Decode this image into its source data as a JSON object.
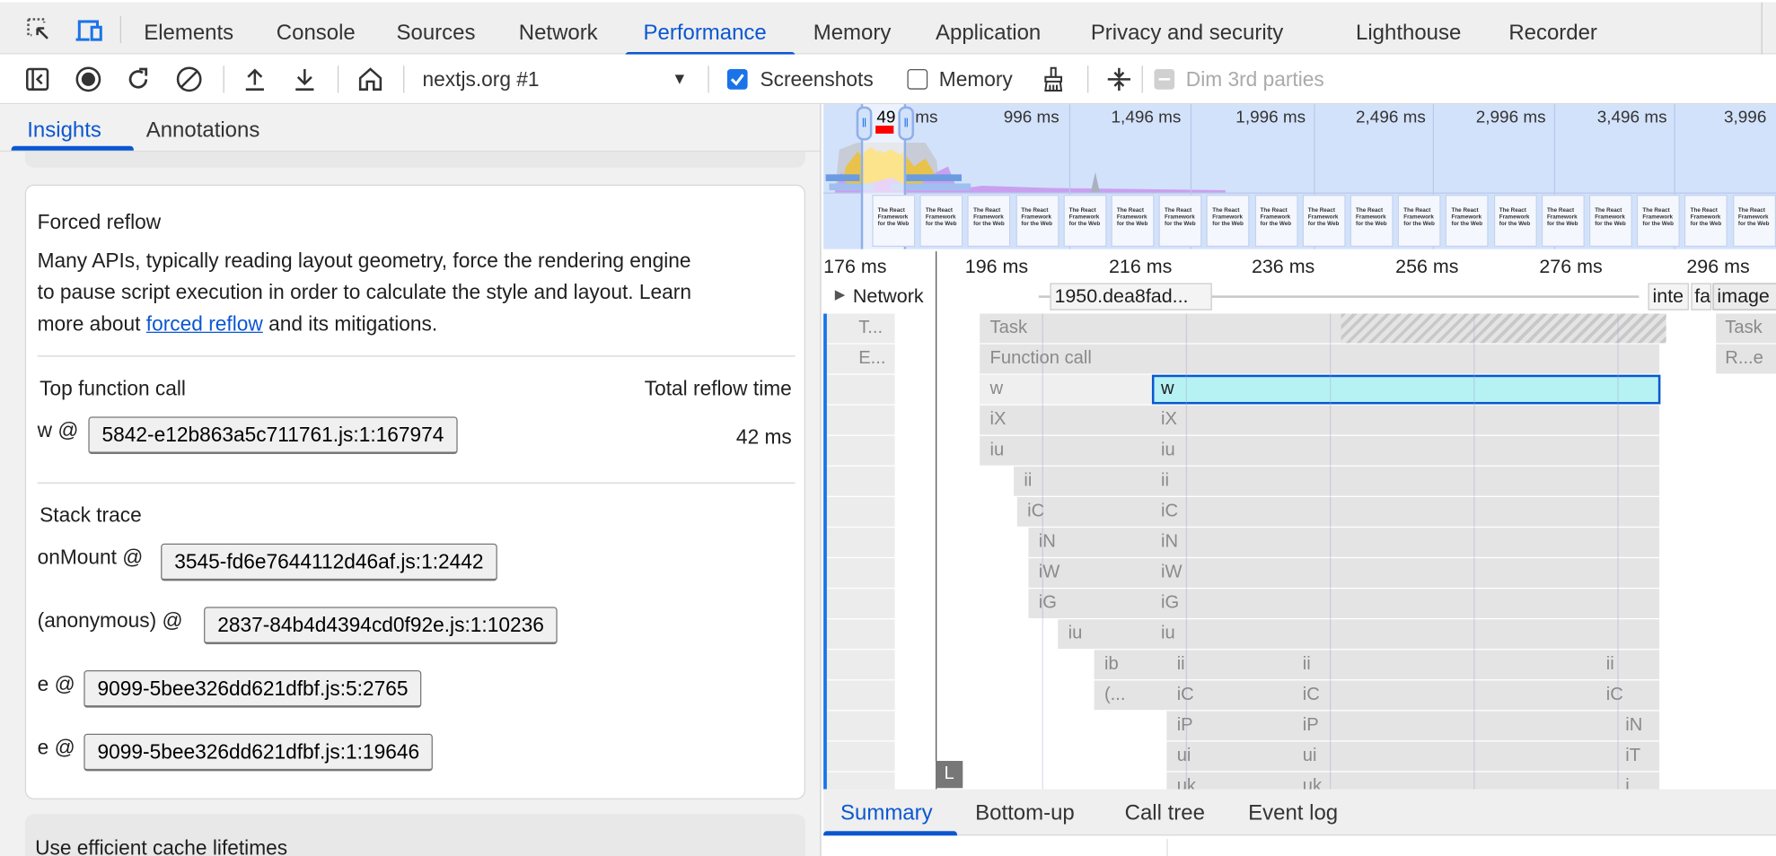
{
  "devtools_tabs": [
    "Elements",
    "Console",
    "Sources",
    "Network",
    "Performance",
    "Memory",
    "Application",
    "Privacy and security",
    "Lighthouse",
    "Recorder"
  ],
  "active_tab": "Performance",
  "toolbar": {
    "recording_select": "nextjs.org #1",
    "screenshots_label": "Screenshots",
    "screenshots_checked": true,
    "memory_label": "Memory",
    "memory_checked": false,
    "dim_label": "Dim 3rd parties",
    "dim_checked": false
  },
  "sidebar": {
    "tabs": [
      "Insights",
      "Annotations"
    ],
    "active": "Insights",
    "insight": {
      "title": "Forced reflow",
      "desc_lines": [
        "Many APIs, typically reading layout geometry, force the rendering engine",
        "to pause script execution in order to calculate the style and layout. Learn"
      ],
      "desc_prefix": "more about ",
      "link": "forced reflow",
      "desc_suffix": " and its mitigations.",
      "col_left": "Top function call",
      "col_right": "Total reflow time",
      "top_fn": "w @",
      "top_src": "5842-e12b863a5c711761.js:1:167974",
      "reflow_time": "42 ms",
      "stack_title": "Stack trace",
      "stack": [
        {
          "fn": "onMount @",
          "src": "3545-fd6e7644112d46af.js:1:2442"
        },
        {
          "fn": "(anonymous) @",
          "src": "2837-84b4d4394cd0f92e.js:1:10236"
        },
        {
          "fn": "e @",
          "src": "9099-5bee326dd621dfbf.js:5:2765"
        },
        {
          "fn": "e @",
          "src": "9099-5bee326dd621dfbf.js:1:19646"
        }
      ]
    },
    "next_insight": "Use efficient cache lifetimes"
  },
  "overview": {
    "selection_label": "49",
    "labels": [
      "ms",
      "996 ms",
      "1,496 ms",
      "1,996 ms",
      "2,496 ms",
      "2,996 ms",
      "3,496 ms",
      "3,996"
    ],
    "thumb_text": "The React Framework for the Web"
  },
  "ruler": [
    "176 ms",
    "196 ms",
    "216 ms",
    "236 ms",
    "256 ms",
    "276 ms",
    "296 ms"
  ],
  "network": {
    "label": "Network",
    "requests": [
      "1950.dea8fad...",
      "inte",
      "fa",
      "image"
    ]
  },
  "flame_rows": [
    [
      "T...",
      "Task",
      "Task"
    ],
    [
      "E...",
      "Function call",
      "R...e"
    ],
    [
      "w",
      "w"
    ],
    [
      "iX",
      "iX"
    ],
    [
      "iu",
      "iu"
    ],
    [
      "ii",
      "ii"
    ],
    [
      "iC",
      "iC"
    ],
    [
      "iN",
      "iN"
    ],
    [
      "iW",
      "iW"
    ],
    [
      "iG",
      "iG"
    ],
    [
      "iu",
      "iu"
    ],
    [
      "ib",
      "ii",
      "ii",
      "ii"
    ],
    [
      "(...",
      "iC",
      "iC",
      "iC"
    ],
    [
      "iP",
      "iP",
      "iN"
    ],
    [
      "ui",
      "ui",
      "iT"
    ],
    [
      "uk",
      "uk",
      "i"
    ]
  ],
  "selected_color": "#b6f1f4",
  "marker": "L",
  "bottom_tabs": [
    "Summary",
    "Bottom-up",
    "Call tree",
    "Event log"
  ],
  "bottom_active": "Summary"
}
